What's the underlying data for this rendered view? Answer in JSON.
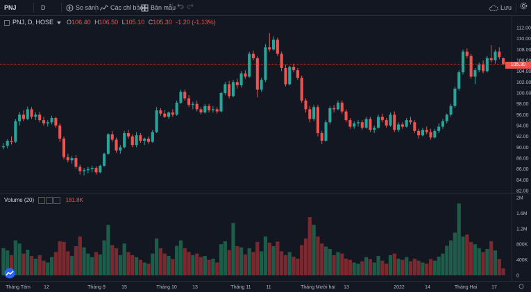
{
  "toolbar": {
    "symbol": "PNJ",
    "interval": "D",
    "compare_label": "So sánh",
    "indicators_label": "Các chỉ báo",
    "templates_label": "Bản mẫu",
    "save_label": "Lưu"
  },
  "legend": {
    "title": "PNJ, D, HOSE",
    "o_label": "O",
    "o_value": "106.40",
    "h_label": "H",
    "h_value": "106.50",
    "l_label": "L",
    "l_value": "105.10",
    "c_label": "C",
    "c_value": "105.30",
    "change": "-1.20 (-1.13%)"
  },
  "volume_legend": {
    "title": "Volume (20)",
    "value": "181.8K"
  },
  "current_price_label": "105.30",
  "colors": {
    "up": "#26a69a",
    "down": "#ef5350",
    "vol_up": "#1e5c4a",
    "vol_down": "#7a2a2e",
    "background": "#131722"
  },
  "chart_data": {
    "type": "candlestick",
    "price_axis_ticks": [
      "112.00",
      "110.00",
      "108.00",
      "106.00",
      "104.00",
      "102.00",
      "100.00",
      "98.00",
      "96.00",
      "94.00",
      "92.00",
      "90.00",
      "88.00",
      "86.00",
      "84.00",
      "82.00"
    ],
    "price_range": [
      82,
      112
    ],
    "volume_axis_ticks": [
      "2M",
      "1.6M",
      "1.2M",
      "800K",
      "400K",
      "0"
    ],
    "volume_range": [
      0,
      2000000
    ],
    "x_labels": [
      "Tháng Tám",
      "12",
      "Tháng 9",
      "15",
      "Tháng 10",
      "13",
      "Tháng 11",
      "11",
      "Tháng Mười hai",
      "13",
      "2022",
      "14",
      "Tháng Hai",
      "17"
    ],
    "candles": [
      {
        "o": 90.0,
        "h": 90.8,
        "l": 89.6,
        "c": 90.2,
        "v": 700000
      },
      {
        "o": 90.3,
        "h": 91.5,
        "l": 89.8,
        "c": 91.2,
        "v": 640000
      },
      {
        "o": 91.2,
        "h": 92.0,
        "l": 90.5,
        "c": 91.0,
        "v": 520000
      },
      {
        "o": 91.0,
        "h": 95.2,
        "l": 90.8,
        "c": 94.8,
        "v": 900000
      },
      {
        "o": 94.8,
        "h": 96.5,
        "l": 94.0,
        "c": 96.0,
        "v": 820000
      },
      {
        "o": 96.0,
        "h": 96.8,
        "l": 94.8,
        "c": 95.2,
        "v": 560000
      },
      {
        "o": 95.2,
        "h": 97.5,
        "l": 95.0,
        "c": 97.0,
        "v": 660000
      },
      {
        "o": 97.0,
        "h": 97.4,
        "l": 95.2,
        "c": 95.6,
        "v": 500000
      },
      {
        "o": 95.6,
        "h": 96.4,
        "l": 95.0,
        "c": 96.0,
        "v": 430000
      },
      {
        "o": 96.0,
        "h": 96.5,
        "l": 94.6,
        "c": 95.0,
        "v": 520000
      },
      {
        "o": 95.0,
        "h": 95.6,
        "l": 94.0,
        "c": 94.4,
        "v": 380000
      },
      {
        "o": 94.4,
        "h": 95.0,
        "l": 93.8,
        "c": 94.6,
        "v": 330000
      },
      {
        "o": 94.6,
        "h": 95.8,
        "l": 94.2,
        "c": 95.4,
        "v": 470000
      },
      {
        "o": 95.4,
        "h": 95.6,
        "l": 93.6,
        "c": 94.0,
        "v": 600000
      },
      {
        "o": 94.0,
        "h": 94.4,
        "l": 91.0,
        "c": 91.6,
        "v": 880000
      },
      {
        "o": 91.6,
        "h": 92.0,
        "l": 87.8,
        "c": 88.2,
        "v": 860000
      },
      {
        "o": 88.2,
        "h": 88.8,
        "l": 87.2,
        "c": 87.6,
        "v": 620000
      },
      {
        "o": 87.6,
        "h": 88.4,
        "l": 87.0,
        "c": 88.0,
        "v": 500000
      },
      {
        "o": 88.0,
        "h": 88.6,
        "l": 86.0,
        "c": 86.4,
        "v": 750000
      },
      {
        "o": 86.4,
        "h": 86.8,
        "l": 85.0,
        "c": 85.6,
        "v": 1000000
      },
      {
        "o": 85.6,
        "h": 86.2,
        "l": 84.8,
        "c": 85.8,
        "v": 720000
      },
      {
        "o": 85.8,
        "h": 86.4,
        "l": 85.2,
        "c": 86.0,
        "v": 560000
      },
      {
        "o": 86.0,
        "h": 86.6,
        "l": 85.4,
        "c": 86.2,
        "v": 470000
      },
      {
        "o": 86.2,
        "h": 86.5,
        "l": 85.0,
        "c": 85.4,
        "v": 600000
      },
      {
        "o": 85.4,
        "h": 86.8,
        "l": 85.2,
        "c": 86.6,
        "v": 540000
      },
      {
        "o": 86.6,
        "h": 89.0,
        "l": 86.4,
        "c": 88.8,
        "v": 900000
      },
      {
        "o": 88.8,
        "h": 92.6,
        "l": 88.6,
        "c": 92.4,
        "v": 1300000
      },
      {
        "o": 92.4,
        "h": 93.0,
        "l": 91.0,
        "c": 91.4,
        "v": 780000
      },
      {
        "o": 91.4,
        "h": 91.8,
        "l": 89.0,
        "c": 89.4,
        "v": 700000
      },
      {
        "o": 89.4,
        "h": 90.4,
        "l": 88.8,
        "c": 90.0,
        "v": 520000
      },
      {
        "o": 90.0,
        "h": 93.0,
        "l": 89.8,
        "c": 92.6,
        "v": 820000
      },
      {
        "o": 92.6,
        "h": 93.2,
        "l": 91.6,
        "c": 92.0,
        "v": 600000
      },
      {
        "o": 92.0,
        "h": 92.4,
        "l": 90.0,
        "c": 90.4,
        "v": 520000
      },
      {
        "o": 90.4,
        "h": 92.8,
        "l": 90.0,
        "c": 92.2,
        "v": 470000
      },
      {
        "o": 92.2,
        "h": 92.6,
        "l": 90.8,
        "c": 91.2,
        "v": 400000
      },
      {
        "o": 91.2,
        "h": 91.8,
        "l": 90.4,
        "c": 91.6,
        "v": 330000
      },
      {
        "o": 91.6,
        "h": 92.0,
        "l": 90.6,
        "c": 91.0,
        "v": 300000
      },
      {
        "o": 91.0,
        "h": 93.2,
        "l": 90.8,
        "c": 92.8,
        "v": 560000
      },
      {
        "o": 92.8,
        "h": 97.4,
        "l": 92.6,
        "c": 96.8,
        "v": 950000
      },
      {
        "o": 96.8,
        "h": 97.2,
        "l": 95.8,
        "c": 96.2,
        "v": 700000
      },
      {
        "o": 96.2,
        "h": 96.8,
        "l": 95.4,
        "c": 95.6,
        "v": 560000
      },
      {
        "o": 95.6,
        "h": 96.6,
        "l": 95.2,
        "c": 96.4,
        "v": 500000
      },
      {
        "o": 96.4,
        "h": 97.0,
        "l": 95.6,
        "c": 96.0,
        "v": 420000
      },
      {
        "o": 96.0,
        "h": 98.6,
        "l": 95.8,
        "c": 98.2,
        "v": 760000
      },
      {
        "o": 98.2,
        "h": 100.6,
        "l": 98.0,
        "c": 100.2,
        "v": 900000
      },
      {
        "o": 100.2,
        "h": 100.6,
        "l": 98.6,
        "c": 99.0,
        "v": 700000
      },
      {
        "o": 99.0,
        "h": 99.6,
        "l": 97.4,
        "c": 97.8,
        "v": 600000
      },
      {
        "o": 97.8,
        "h": 98.4,
        "l": 97.0,
        "c": 98.0,
        "v": 520000
      },
      {
        "o": 98.0,
        "h": 98.6,
        "l": 96.6,
        "c": 97.0,
        "v": 560000
      },
      {
        "o": 97.0,
        "h": 97.4,
        "l": 96.0,
        "c": 96.4,
        "v": 470000
      },
      {
        "o": 96.4,
        "h": 98.0,
        "l": 96.2,
        "c": 97.6,
        "v": 500000
      },
      {
        "o": 97.6,
        "h": 98.0,
        "l": 96.4,
        "c": 96.8,
        "v": 400000
      },
      {
        "o": 96.8,
        "h": 97.6,
        "l": 96.4,
        "c": 97.0,
        "v": 430000
      },
      {
        "o": 97.0,
        "h": 97.4,
        "l": 96.2,
        "c": 96.6,
        "v": 330000
      },
      {
        "o": 96.6,
        "h": 100.2,
        "l": 96.4,
        "c": 100.0,
        "v": 800000
      },
      {
        "o": 100.0,
        "h": 102.0,
        "l": 99.6,
        "c": 101.6,
        "v": 880000
      },
      {
        "o": 101.6,
        "h": 102.2,
        "l": 99.0,
        "c": 99.4,
        "v": 650000
      },
      {
        "o": 99.4,
        "h": 102.4,
        "l": 99.2,
        "c": 102.0,
        "v": 1350000
      },
      {
        "o": 102.0,
        "h": 102.6,
        "l": 100.8,
        "c": 101.4,
        "v": 750000
      },
      {
        "o": 101.4,
        "h": 104.0,
        "l": 101.0,
        "c": 103.6,
        "v": 720000
      },
      {
        "o": 103.6,
        "h": 104.2,
        "l": 102.6,
        "c": 103.0,
        "v": 540000
      },
      {
        "o": 103.0,
        "h": 107.6,
        "l": 102.8,
        "c": 107.2,
        "v": 700000
      },
      {
        "o": 107.2,
        "h": 107.8,
        "l": 106.0,
        "c": 106.4,
        "v": 600000
      },
      {
        "o": 106.4,
        "h": 106.8,
        "l": 99.2,
        "c": 100.6,
        "v": 860000
      },
      {
        "o": 100.6,
        "h": 102.8,
        "l": 100.2,
        "c": 102.4,
        "v": 620000
      },
      {
        "o": 102.4,
        "h": 109.0,
        "l": 102.0,
        "c": 108.4,
        "v": 1000000
      },
      {
        "o": 108.4,
        "h": 111.0,
        "l": 107.6,
        "c": 108.0,
        "v": 840000
      },
      {
        "o": 108.0,
        "h": 110.4,
        "l": 107.8,
        "c": 109.8,
        "v": 750000
      },
      {
        "o": 109.8,
        "h": 110.2,
        "l": 106.8,
        "c": 107.2,
        "v": 870000
      },
      {
        "o": 107.2,
        "h": 107.6,
        "l": 104.0,
        "c": 104.6,
        "v": 620000
      },
      {
        "o": 104.6,
        "h": 105.2,
        "l": 101.2,
        "c": 101.6,
        "v": 520000
      },
      {
        "o": 101.6,
        "h": 105.0,
        "l": 101.4,
        "c": 104.8,
        "v": 600000
      },
      {
        "o": 104.8,
        "h": 105.4,
        "l": 103.8,
        "c": 104.2,
        "v": 480000
      },
      {
        "o": 104.2,
        "h": 104.6,
        "l": 102.4,
        "c": 102.8,
        "v": 430000
      },
      {
        "o": 102.8,
        "h": 103.2,
        "l": 98.2,
        "c": 98.6,
        "v": 780000
      },
      {
        "o": 98.6,
        "h": 99.0,
        "l": 96.4,
        "c": 97.0,
        "v": 950000
      },
      {
        "o": 97.0,
        "h": 97.6,
        "l": 94.6,
        "c": 95.2,
        "v": 1500000
      },
      {
        "o": 95.2,
        "h": 97.8,
        "l": 94.8,
        "c": 97.4,
        "v": 1300000
      },
      {
        "o": 97.4,
        "h": 97.8,
        "l": 92.0,
        "c": 92.6,
        "v": 1000000
      },
      {
        "o": 92.6,
        "h": 93.0,
        "l": 90.6,
        "c": 91.2,
        "v": 820000
      },
      {
        "o": 91.2,
        "h": 95.0,
        "l": 91.0,
        "c": 94.6,
        "v": 740000
      },
      {
        "o": 94.6,
        "h": 97.6,
        "l": 94.2,
        "c": 97.2,
        "v": 680000
      },
      {
        "o": 97.2,
        "h": 97.8,
        "l": 96.4,
        "c": 97.0,
        "v": 520000
      },
      {
        "o": 97.0,
        "h": 98.6,
        "l": 96.8,
        "c": 98.2,
        "v": 600000
      },
      {
        "o": 98.2,
        "h": 98.6,
        "l": 96.2,
        "c": 96.6,
        "v": 560000
      },
      {
        "o": 96.6,
        "h": 97.0,
        "l": 94.6,
        "c": 95.0,
        "v": 430000
      },
      {
        "o": 95.0,
        "h": 95.4,
        "l": 93.4,
        "c": 93.8,
        "v": 400000
      },
      {
        "o": 93.8,
        "h": 94.8,
        "l": 93.4,
        "c": 94.4,
        "v": 330000
      },
      {
        "o": 94.4,
        "h": 95.0,
        "l": 93.8,
        "c": 94.6,
        "v": 300000
      },
      {
        "o": 94.6,
        "h": 95.0,
        "l": 93.2,
        "c": 93.6,
        "v": 360000
      },
      {
        "o": 93.6,
        "h": 95.6,
        "l": 93.4,
        "c": 95.2,
        "v": 470000
      },
      {
        "o": 95.2,
        "h": 95.6,
        "l": 92.8,
        "c": 93.2,
        "v": 420000
      },
      {
        "o": 93.2,
        "h": 94.0,
        "l": 92.6,
        "c": 93.6,
        "v": 330000
      },
      {
        "o": 93.6,
        "h": 96.0,
        "l": 93.4,
        "c": 95.6,
        "v": 500000
      },
      {
        "o": 95.6,
        "h": 96.2,
        "l": 94.6,
        "c": 95.0,
        "v": 380000
      },
      {
        "o": 95.0,
        "h": 95.4,
        "l": 93.6,
        "c": 94.0,
        "v": 300000
      },
      {
        "o": 94.0,
        "h": 96.4,
        "l": 93.8,
        "c": 96.0,
        "v": 520000
      },
      {
        "o": 96.0,
        "h": 96.6,
        "l": 92.8,
        "c": 93.2,
        "v": 560000
      },
      {
        "o": 93.2,
        "h": 94.6,
        "l": 92.8,
        "c": 94.2,
        "v": 430000
      },
      {
        "o": 94.2,
        "h": 94.6,
        "l": 93.4,
        "c": 93.8,
        "v": 400000
      },
      {
        "o": 93.8,
        "h": 95.4,
        "l": 93.6,
        "c": 95.0,
        "v": 470000
      },
      {
        "o": 95.0,
        "h": 95.6,
        "l": 94.2,
        "c": 94.6,
        "v": 360000
      },
      {
        "o": 94.6,
        "h": 95.0,
        "l": 92.6,
        "c": 93.0,
        "v": 430000
      },
      {
        "o": 93.0,
        "h": 93.4,
        "l": 91.6,
        "c": 92.2,
        "v": 380000
      },
      {
        "o": 92.2,
        "h": 93.6,
        "l": 92.0,
        "c": 93.2,
        "v": 330000
      },
      {
        "o": 93.2,
        "h": 93.8,
        "l": 92.4,
        "c": 92.8,
        "v": 300000
      },
      {
        "o": 92.8,
        "h": 93.4,
        "l": 91.4,
        "c": 91.8,
        "v": 420000
      },
      {
        "o": 91.8,
        "h": 93.4,
        "l": 91.6,
        "c": 93.0,
        "v": 380000
      },
      {
        "o": 93.0,
        "h": 94.4,
        "l": 92.6,
        "c": 93.8,
        "v": 480000
      },
      {
        "o": 93.8,
        "h": 95.2,
        "l": 93.4,
        "c": 94.8,
        "v": 560000
      },
      {
        "o": 94.8,
        "h": 96.2,
        "l": 94.4,
        "c": 96.0,
        "v": 760000
      },
      {
        "o": 96.0,
        "h": 98.0,
        "l": 95.6,
        "c": 97.6,
        "v": 900000
      },
      {
        "o": 97.6,
        "h": 101.2,
        "l": 97.2,
        "c": 100.8,
        "v": 1100000
      },
      {
        "o": 100.8,
        "h": 104.2,
        "l": 100.4,
        "c": 103.8,
        "v": 1850000
      },
      {
        "o": 103.8,
        "h": 108.0,
        "l": 103.4,
        "c": 107.6,
        "v": 1000000
      },
      {
        "o": 107.6,
        "h": 108.2,
        "l": 106.4,
        "c": 106.8,
        "v": 1050000
      },
      {
        "o": 106.8,
        "h": 107.2,
        "l": 102.6,
        "c": 103.0,
        "v": 860000
      },
      {
        "o": 103.0,
        "h": 104.6,
        "l": 101.6,
        "c": 104.2,
        "v": 800000
      },
      {
        "o": 104.2,
        "h": 105.6,
        "l": 103.8,
        "c": 105.2,
        "v": 700000
      },
      {
        "o": 105.2,
        "h": 106.0,
        "l": 103.6,
        "c": 104.0,
        "v": 600000
      },
      {
        "o": 104.0,
        "h": 106.8,
        "l": 103.8,
        "c": 106.4,
        "v": 680000
      },
      {
        "o": 106.4,
        "h": 108.8,
        "l": 105.6,
        "c": 106.0,
        "v": 880000
      },
      {
        "o": 106.0,
        "h": 108.0,
        "l": 105.4,
        "c": 107.6,
        "v": 640000
      },
      {
        "o": 107.6,
        "h": 108.4,
        "l": 106.2,
        "c": 106.6,
        "v": 420000
      },
      {
        "o": 106.4,
        "h": 106.5,
        "l": 105.1,
        "c": 105.3,
        "v": 181800
      }
    ]
  }
}
